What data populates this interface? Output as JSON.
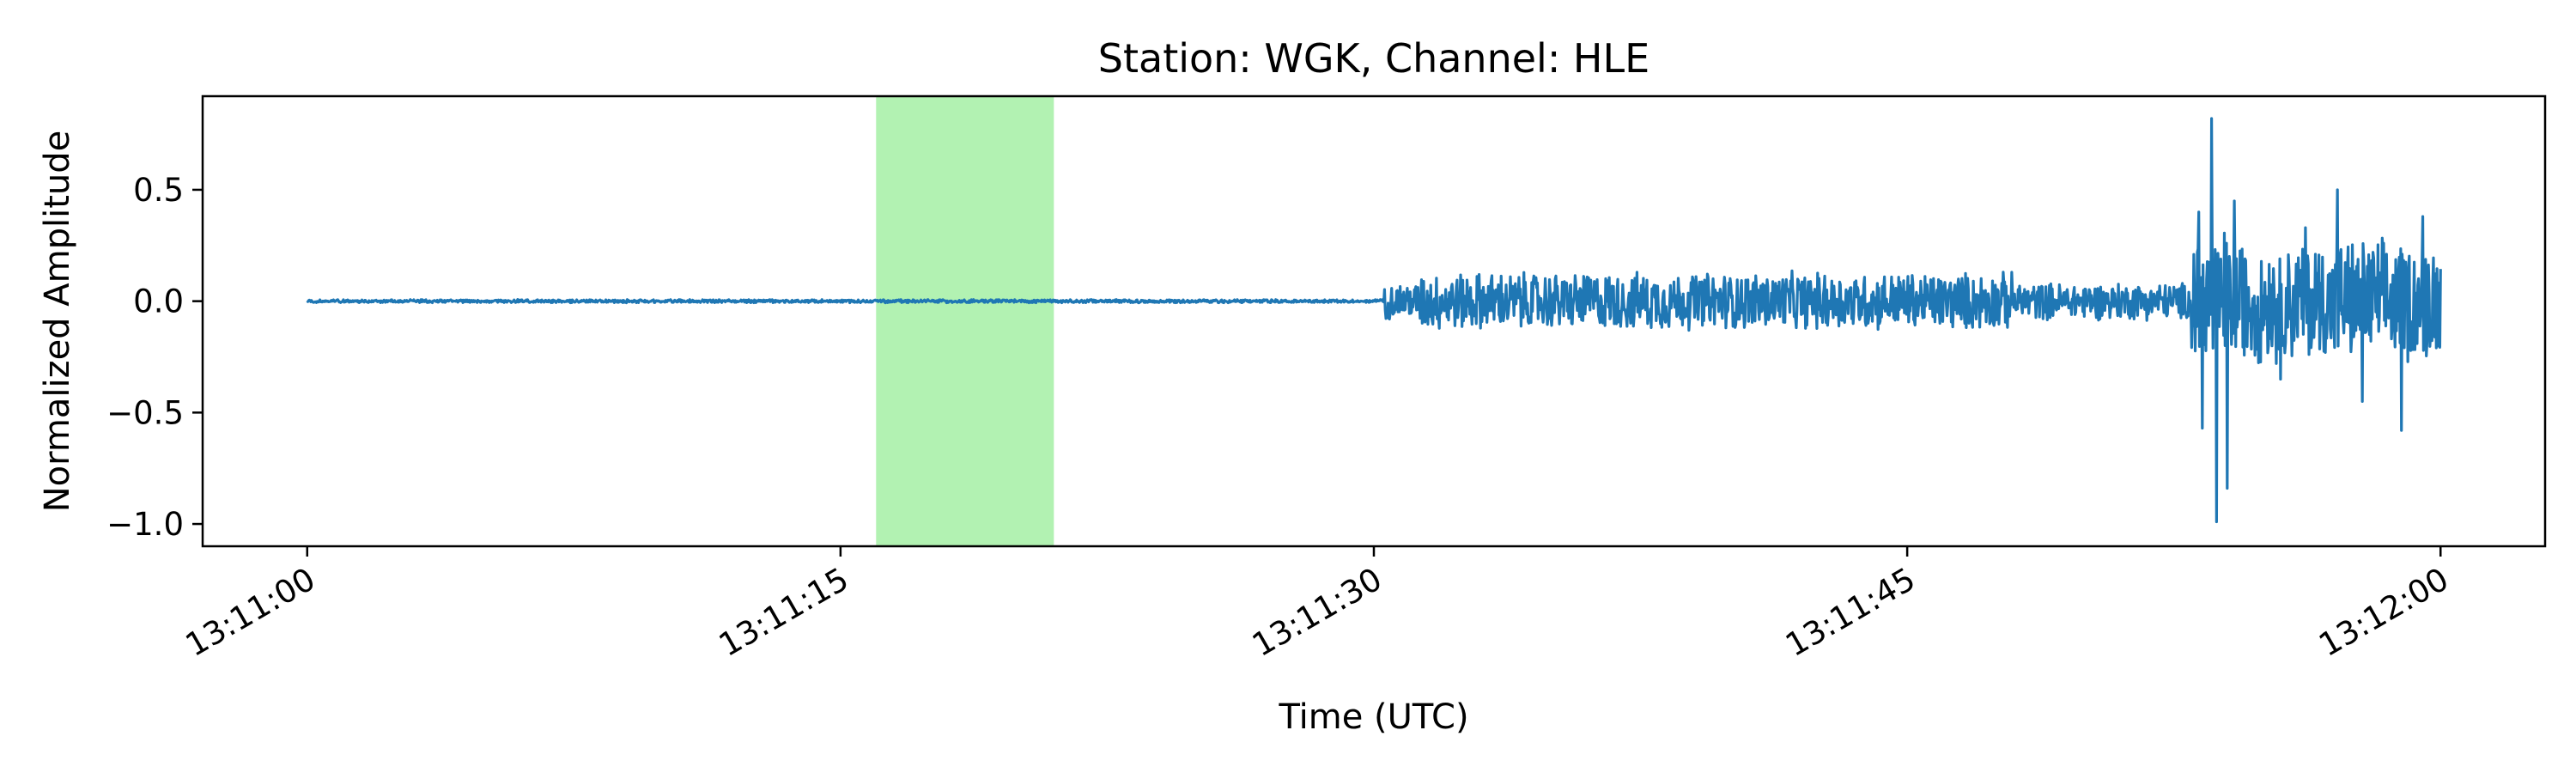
{
  "chart_data": {
    "type": "line",
    "title": "Station: WGK, Channel: HLE",
    "xlabel": "Time (UTC)",
    "ylabel": "Normalized Amplitude",
    "x_ticks": [
      "13:11:00",
      "13:11:15",
      "13:11:30",
      "13:11:45",
      "13:12:00"
    ],
    "x_tick_seconds": [
      0,
      15,
      30,
      45,
      60
    ],
    "y_ticks": [
      0.5,
      0.0,
      -0.5,
      -1.0
    ],
    "y_tick_labels": [
      "0.5",
      "0.0",
      "−0.5",
      "−1.0"
    ],
    "xlim_seconds": [
      -2.94,
      62.94
    ],
    "ylim": [
      -1.1,
      0.92
    ],
    "grid": false,
    "colors": {
      "trace": "#1f77b4",
      "highlight": "#b2f2b2"
    },
    "highlight_span": {
      "start_seconds": 16.0,
      "end_seconds": 21.0
    },
    "series": [
      {
        "start_seconds": 0,
        "end_seconds": 60,
        "segments": [
          {
            "from": 0.0,
            "to": 30.3,
            "amp": 0.008
          },
          {
            "from": 30.3,
            "to": 31.3,
            "amp": 0.09
          },
          {
            "from": 31.3,
            "to": 48.0,
            "amp": 0.14
          },
          {
            "from": 48.0,
            "to": 53.0,
            "amp": 0.09
          },
          {
            "from": 53.0,
            "to": 54.0,
            "amp": 0.55
          },
          {
            "from": 54.0,
            "to": 60.0,
            "amp": 0.3
          }
        ],
        "peaks": [
          {
            "t": 53.55,
            "v": 0.82
          },
          {
            "t": 53.7,
            "v": -0.99
          },
          {
            "t": 53.2,
            "v": 0.4
          },
          {
            "t": 53.3,
            "v": -0.57
          },
          {
            "t": 54.0,
            "v": -0.84
          },
          {
            "t": 54.2,
            "v": 0.45
          },
          {
            "t": 55.5,
            "v": -0.35
          },
          {
            "t": 57.1,
            "v": 0.5
          },
          {
            "t": 58.9,
            "v": -0.58
          },
          {
            "t": 59.5,
            "v": 0.38
          },
          {
            "t": 56.2,
            "v": 0.33
          },
          {
            "t": 57.8,
            "v": -0.45
          }
        ]
      }
    ]
  }
}
